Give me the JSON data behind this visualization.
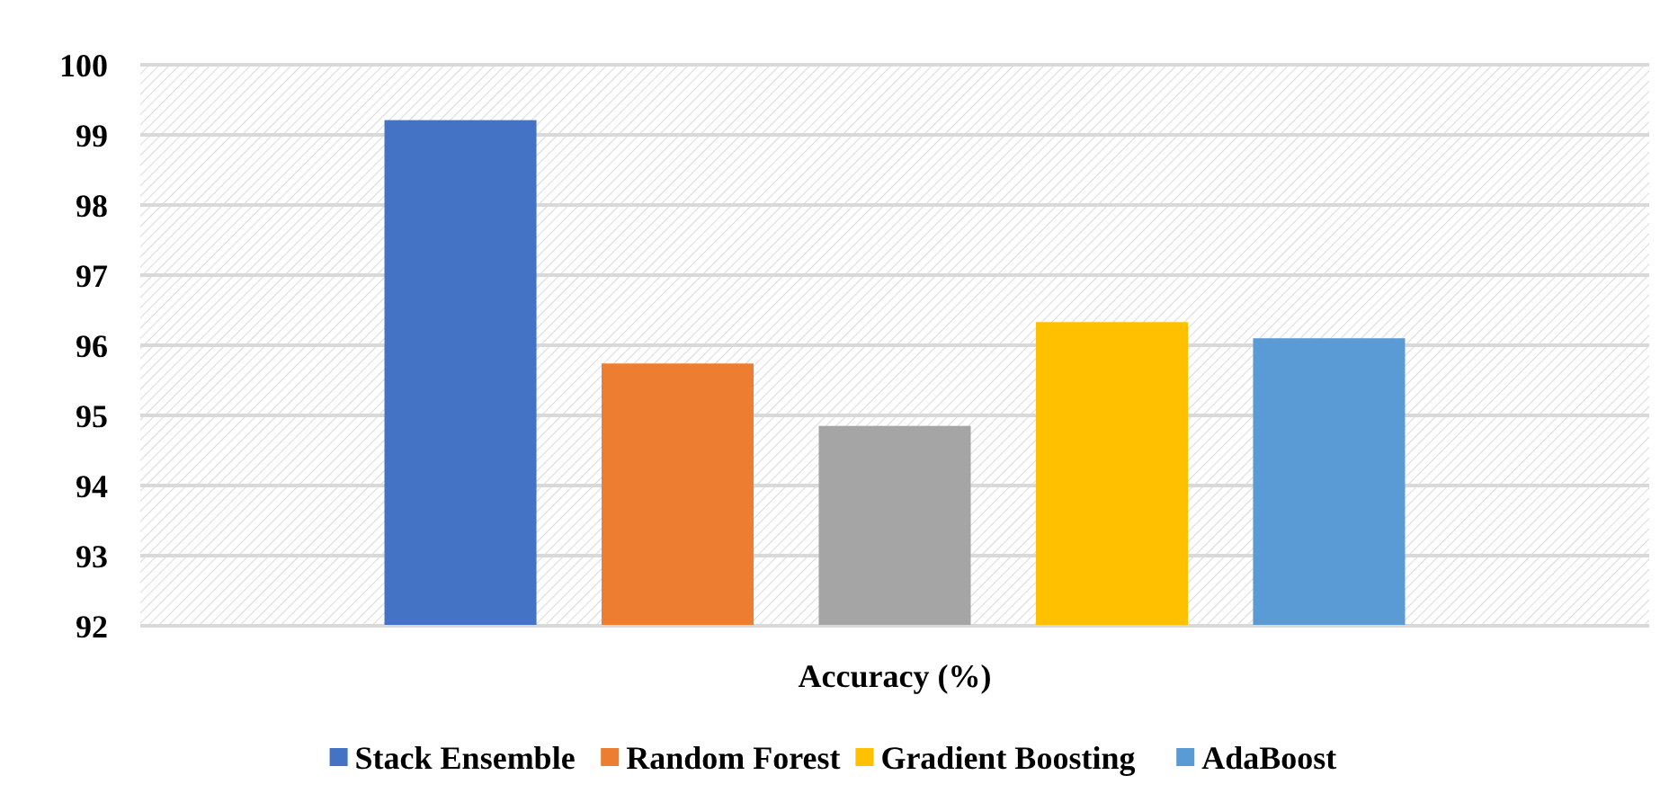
{
  "chart_data": {
    "type": "bar",
    "categories": [
      "Accuracy (%)"
    ],
    "series": [
      {
        "name": "Stack Ensemble",
        "color": "#4472c4",
        "values": [
          99.21
        ]
      },
      {
        "name": "Random Forest",
        "color": "#ed7d31",
        "values": [
          95.74
        ]
      },
      {
        "color": "#a5a5a5",
        "values": [
          94.85
        ]
      },
      {
        "name": "Gradient Boosting",
        "color": "#ffc000",
        "values": [
          96.33
        ]
      },
      {
        "name": "AdaBoost",
        "color": "#5b9bd5",
        "values": [
          96.1
        ]
      }
    ],
    "ylim": [
      92,
      100
    ],
    "yticks": [
      92,
      93,
      94,
      95,
      96,
      97,
      98,
      99,
      100
    ],
    "grid": "y",
    "legend": "bottom"
  }
}
